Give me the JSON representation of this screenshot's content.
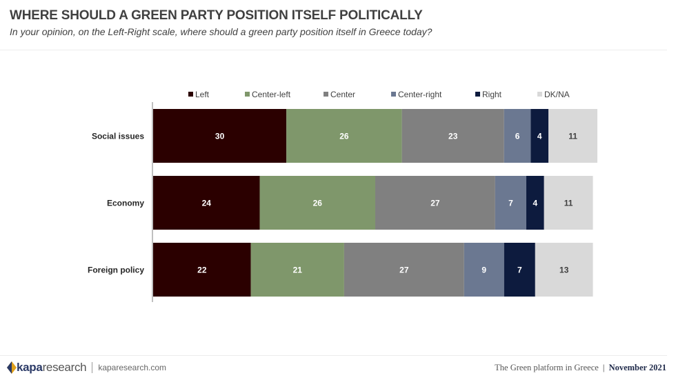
{
  "header": {
    "title": "WHERE SHOULD A GREEN PARTY POSITION ITSELF POLITICALLY",
    "subtitle": "In your opinion, on the Left-Right scale, where should a green party position itself in Greece today?"
  },
  "chart_data": {
    "type": "bar",
    "orientation": "horizontal",
    "stacked": true,
    "categories": [
      "Social issues",
      "Economy",
      "Foreign policy"
    ],
    "series": [
      {
        "name": "Left",
        "color": "#2b0000",
        "values": [
          30,
          24,
          22
        ]
      },
      {
        "name": "Center-left",
        "color": "#7f976b",
        "values": [
          26,
          26,
          21
        ]
      },
      {
        "name": "Center",
        "color": "#808080",
        "values": [
          23,
          27,
          27
        ]
      },
      {
        "name": "Center-right",
        "color": "#6b7891",
        "values": [
          6,
          7,
          9
        ]
      },
      {
        "name": "Right",
        "color": "#0d1b3e",
        "values": [
          4,
          4,
          7
        ]
      },
      {
        "name": "DK/NA",
        "color": "#d9d9d9",
        "values": [
          11,
          11,
          13
        ]
      }
    ],
    "legend_position": "top",
    "xlim": [
      0,
      100
    ],
    "data_labels": true,
    "grid": false
  },
  "footer": {
    "logo_bold": "kapa",
    "logo_rest": "research",
    "site": "kaparesearch.com",
    "report_name": "The Green platform in Greece",
    "separator": "|",
    "date": "November 2021"
  }
}
